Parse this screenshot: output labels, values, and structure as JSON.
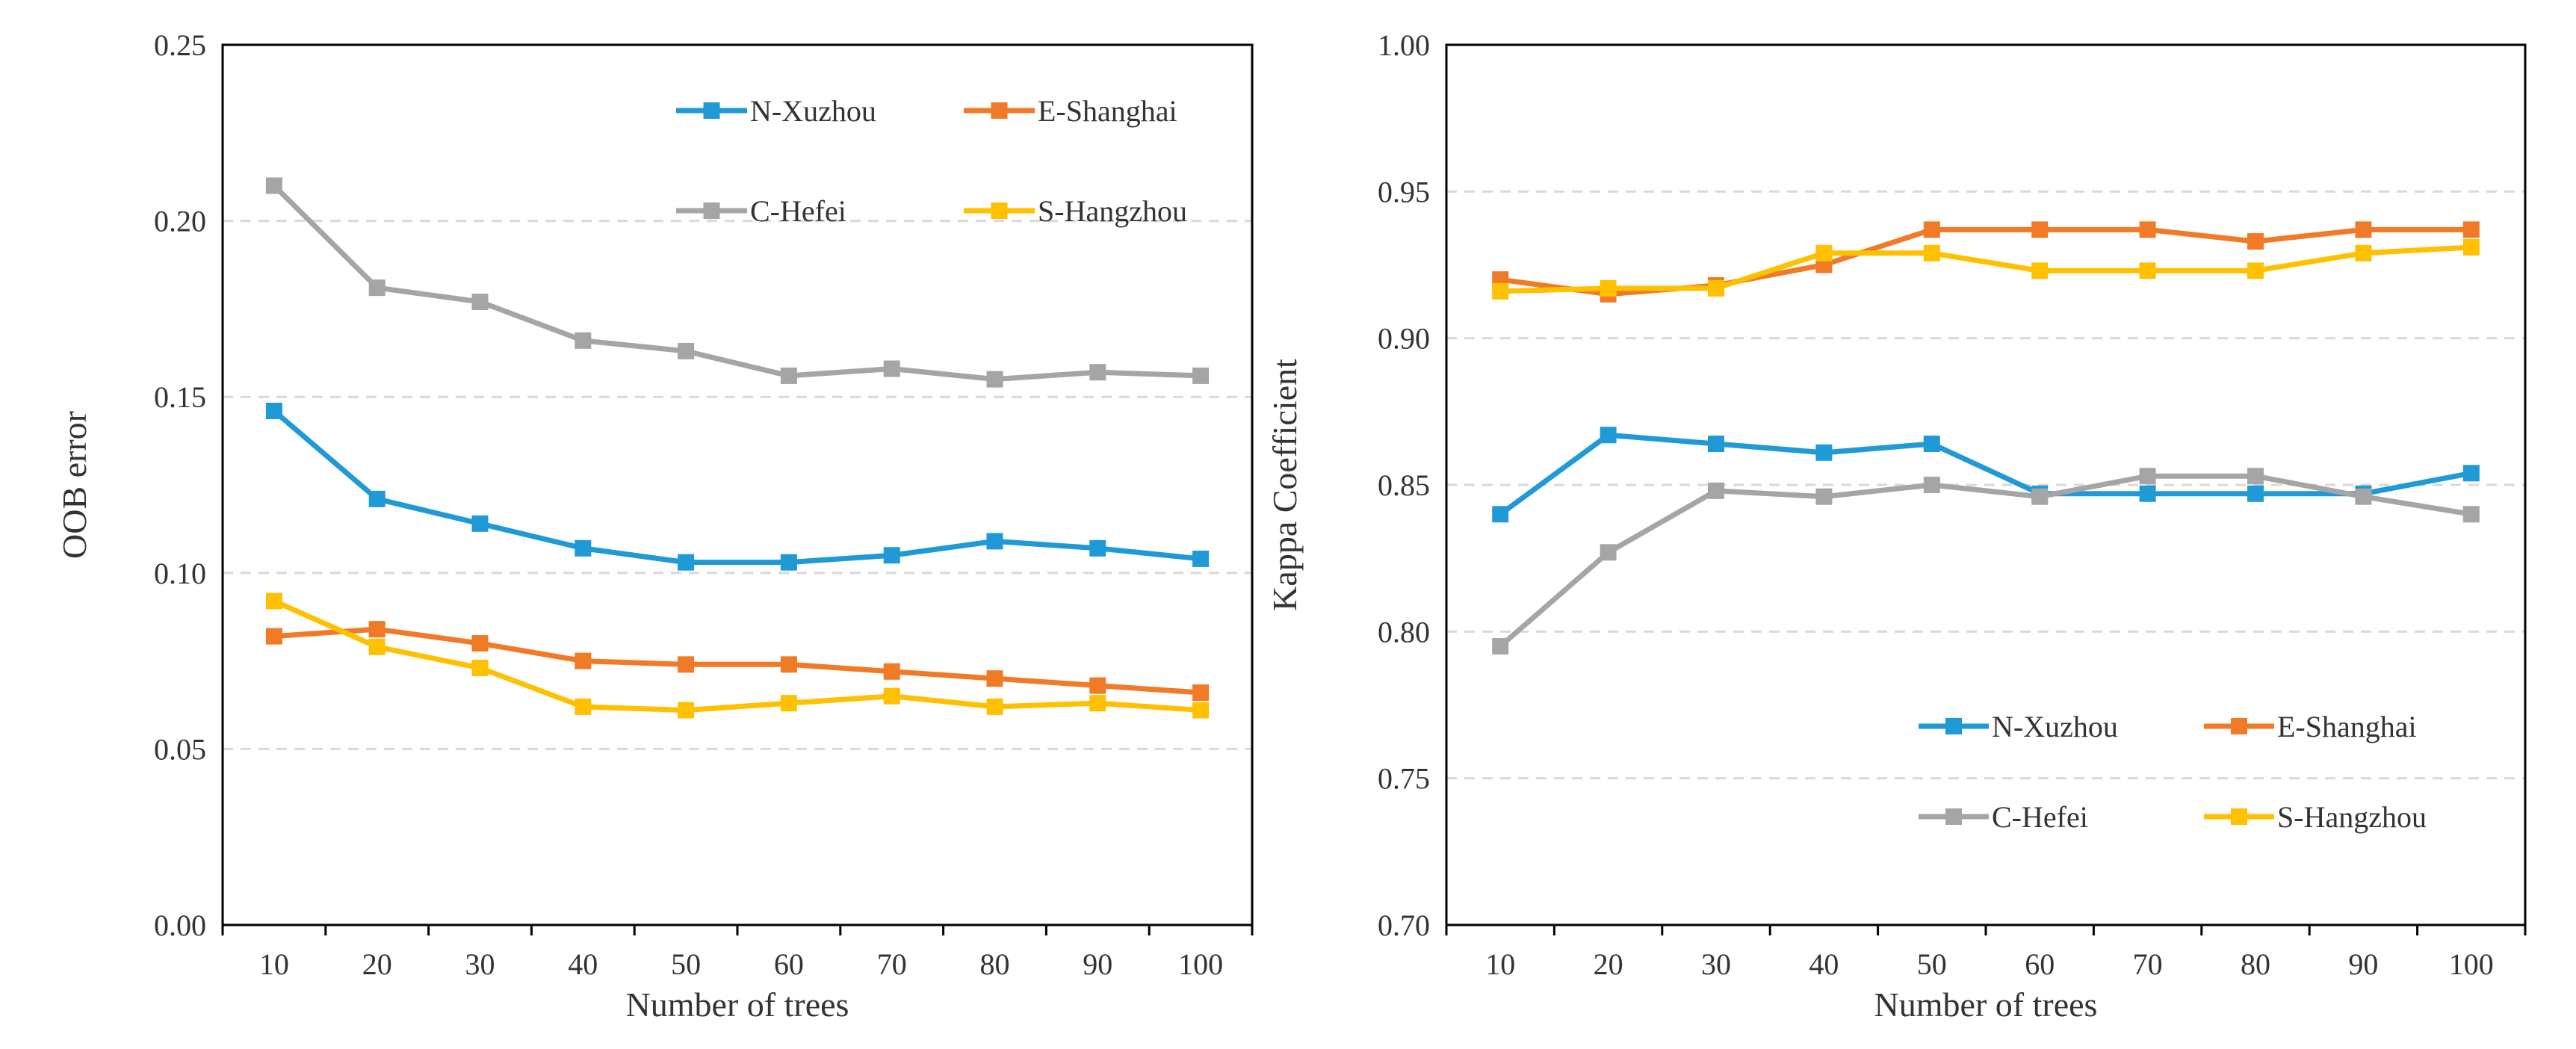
{
  "chart_data": [
    {
      "type": "line",
      "id": "left",
      "ylabel": "OOB error",
      "xlabel": "Number of trees",
      "categories": [
        "10",
        "20",
        "30",
        "40",
        "50",
        "60",
        "70",
        "80",
        "90",
        "100"
      ],
      "ylim": [
        0,
        0.25
      ],
      "yticks": [
        "0.00",
        "0.05",
        "0.10",
        "0.15",
        "0.20",
        "0.25"
      ],
      "legend_position": "top-right",
      "series": [
        {
          "name": "N-Xuzhou",
          "color": "#1f9ad6",
          "values": [
            0.146,
            0.121,
            0.114,
            0.107,
            0.103,
            0.103,
            0.105,
            0.109,
            0.107,
            0.104
          ]
        },
        {
          "name": "E-Shanghai",
          "color": "#f07a26",
          "values": [
            0.082,
            0.084,
            0.08,
            0.075,
            0.074,
            0.074,
            0.072,
            0.07,
            0.068,
            0.066
          ]
        },
        {
          "name": "C-Hefei",
          "color": "#a5a5a5",
          "values": [
            0.21,
            0.181,
            0.177,
            0.166,
            0.163,
            0.156,
            0.158,
            0.155,
            0.157,
            0.156
          ]
        },
        {
          "name": "S-Hangzhou",
          "color": "#ffc000",
          "values": [
            0.092,
            0.079,
            0.073,
            0.062,
            0.061,
            0.063,
            0.065,
            0.062,
            0.063,
            0.061
          ]
        }
      ]
    },
    {
      "type": "line",
      "id": "right",
      "ylabel": "Kappa Coefficient",
      "xlabel": "Number of trees",
      "categories": [
        "10",
        "20",
        "30",
        "40",
        "50",
        "60",
        "70",
        "80",
        "90",
        "100"
      ],
      "ylim": [
        0.7,
        1.0
      ],
      "yticks": [
        "0.70",
        "0.75",
        "0.80",
        "0.85",
        "0.90",
        "0.95",
        "1.00"
      ],
      "legend_position": "bottom-right",
      "series": [
        {
          "name": "N-Xuzhou",
          "color": "#1f9ad6",
          "values": [
            0.84,
            0.867,
            0.864,
            0.861,
            0.864,
            0.847,
            0.847,
            0.847,
            0.847,
            0.854
          ]
        },
        {
          "name": "E-Shanghai",
          "color": "#f07a26",
          "values": [
            0.92,
            0.915,
            0.918,
            0.925,
            0.937,
            0.937,
            0.937,
            0.933,
            0.937,
            0.937
          ]
        },
        {
          "name": "C-Hefei",
          "color": "#a5a5a5",
          "values": [
            0.795,
            0.827,
            0.848,
            0.846,
            0.85,
            0.846,
            0.853,
            0.853,
            0.846,
            0.84
          ]
        },
        {
          "name": "S-Hangzhou",
          "color": "#ffc000",
          "values": [
            0.916,
            0.917,
            0.917,
            0.929,
            0.929,
            0.923,
            0.923,
            0.923,
            0.929,
            0.931
          ]
        }
      ]
    }
  ]
}
